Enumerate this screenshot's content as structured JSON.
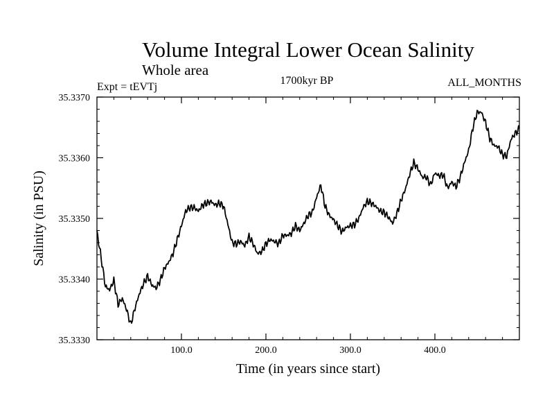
{
  "chart_data": {
    "type": "line",
    "title": "Volume Integral Lower Ocean Salinity",
    "subtitle": "Whole area",
    "experiment_label": "Expt = tEVTj",
    "period_label": "1700kyr BP",
    "months_label": "ALL_MONTHS",
    "xlabel": "Time (in years since start)",
    "ylabel": "Salinity (in PSU)",
    "xlim": [
      0,
      500
    ],
    "ylim": [
      35.333,
      35.337
    ],
    "x_ticks": [
      100,
      200,
      300,
      400
    ],
    "x_tick_labels": [
      "100.0",
      "200.0",
      "300.0",
      "400.0"
    ],
    "y_ticks": [
      35.333,
      35.334,
      35.335,
      35.336,
      35.337
    ],
    "y_tick_labels": [
      "35.3330",
      "35.3340",
      "35.3350",
      "35.3360",
      "35.3370"
    ],
    "grid": false,
    "series": [
      {
        "name": "Salinity",
        "x": [
          0,
          5,
          10,
          15,
          20,
          25,
          30,
          35,
          40,
          45,
          50,
          55,
          60,
          65,
          70,
          75,
          80,
          85,
          90,
          95,
          100,
          105,
          110,
          115,
          120,
          125,
          130,
          135,
          140,
          145,
          150,
          155,
          160,
          165,
          170,
          175,
          180,
          185,
          190,
          195,
          200,
          205,
          210,
          215,
          220,
          225,
          230,
          235,
          240,
          245,
          250,
          255,
          260,
          265,
          270,
          275,
          280,
          285,
          290,
          295,
          300,
          305,
          310,
          315,
          320,
          325,
          330,
          335,
          340,
          345,
          350,
          355,
          360,
          365,
          370,
          375,
          380,
          385,
          390,
          395,
          400,
          405,
          410,
          415,
          420,
          425,
          430,
          435,
          440,
          445,
          450,
          455,
          460,
          465,
          470,
          475,
          480,
          485,
          490,
          495,
          500
        ],
        "values": [
          35.33478,
          35.33435,
          35.33388,
          35.33382,
          35.33398,
          35.33358,
          35.33368,
          35.3335,
          35.33325,
          35.33352,
          35.33375,
          35.33392,
          35.33405,
          35.3339,
          35.33385,
          35.33398,
          35.33418,
          35.33428,
          35.33442,
          35.33465,
          35.33488,
          35.33512,
          35.33518,
          35.33518,
          35.33512,
          35.33522,
          35.33525,
          35.33528,
          35.33522,
          35.33525,
          35.3352,
          35.3349,
          35.3346,
          35.33458,
          35.33462,
          35.33455,
          35.3347,
          35.33458,
          35.33442,
          35.33445,
          35.33458,
          35.33465,
          35.33462,
          35.33458,
          35.33472,
          35.33472,
          35.33475,
          35.33488,
          35.3348,
          35.33492,
          35.33505,
          35.3351,
          35.33535,
          35.33555,
          35.3352,
          35.33505,
          35.33498,
          35.33488,
          35.33478,
          35.33485,
          35.33488,
          35.3349,
          35.335,
          35.33518,
          35.33528,
          35.33525,
          35.3352,
          35.33512,
          35.3351,
          35.33502,
          35.33492,
          35.33508,
          35.3353,
          35.33548,
          35.33572,
          35.33592,
          35.33582,
          35.33568,
          35.33568,
          35.33555,
          35.33575,
          35.3357,
          35.33572,
          35.3355,
          35.3356,
          35.33552,
          35.33568,
          35.33592,
          35.33612,
          35.3365,
          35.33675,
          35.33675,
          35.33658,
          35.33632,
          35.3362,
          35.33618,
          35.33605,
          35.33602,
          35.3363,
          35.3364,
          35.33648
        ]
      }
    ]
  }
}
